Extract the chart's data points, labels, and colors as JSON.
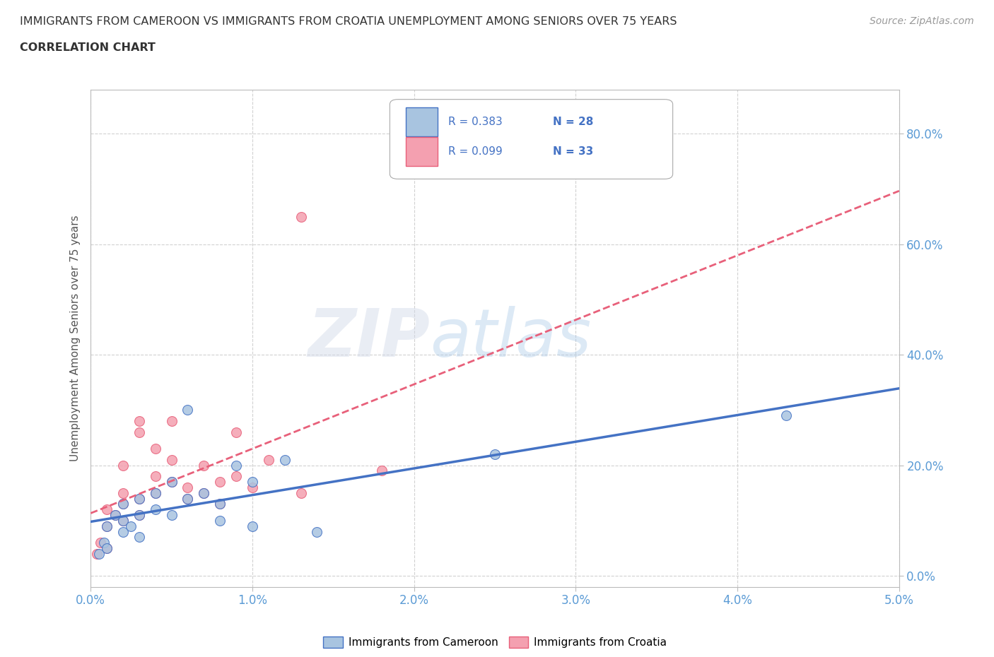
{
  "title_line1": "IMMIGRANTS FROM CAMEROON VS IMMIGRANTS FROM CROATIA UNEMPLOYMENT AMONG SENIORS OVER 75 YEARS",
  "title_line2": "CORRELATION CHART",
  "source": "Source: ZipAtlas.com",
  "ylabel_label": "Unemployment Among Seniors over 75 years",
  "xlim": [
    0.0,
    0.05
  ],
  "ylim": [
    -0.02,
    0.88
  ],
  "xticks": [
    0.0,
    0.01,
    0.02,
    0.03,
    0.04,
    0.05
  ],
  "yticks": [
    0.0,
    0.2,
    0.4,
    0.6,
    0.8
  ],
  "ytick_labels": [
    "0.0%",
    "20.0%",
    "40.0%",
    "60.0%",
    "80.0%"
  ],
  "xtick_labels": [
    "0.0%",
    "1.0%",
    "2.0%",
    "3.0%",
    "4.0%",
    "5.0%"
  ],
  "cameroon_color": "#a8c4e0",
  "croatia_color": "#f4a0b0",
  "trendline_cameroon_color": "#4472c4",
  "trendline_croatia_color": "#e8607a",
  "legend_R_cameroon": "R = 0.383",
  "legend_N_cameroon": "N = 28",
  "legend_R_croatia": "R = 0.099",
  "legend_N_croatia": "N = 33",
  "cameroon_x": [
    0.0005,
    0.0008,
    0.001,
    0.001,
    0.0015,
    0.002,
    0.002,
    0.002,
    0.0025,
    0.003,
    0.003,
    0.003,
    0.004,
    0.004,
    0.005,
    0.005,
    0.006,
    0.006,
    0.007,
    0.008,
    0.008,
    0.009,
    0.01,
    0.01,
    0.012,
    0.014,
    0.025,
    0.043
  ],
  "cameroon_y": [
    0.04,
    0.06,
    0.05,
    0.09,
    0.11,
    0.08,
    0.1,
    0.13,
    0.09,
    0.07,
    0.11,
    0.14,
    0.15,
    0.12,
    0.11,
    0.17,
    0.14,
    0.3,
    0.15,
    0.13,
    0.1,
    0.2,
    0.17,
    0.09,
    0.21,
    0.08,
    0.22,
    0.29
  ],
  "croatia_x": [
    0.0004,
    0.0006,
    0.001,
    0.001,
    0.001,
    0.0015,
    0.002,
    0.002,
    0.002,
    0.002,
    0.003,
    0.003,
    0.003,
    0.003,
    0.004,
    0.004,
    0.004,
    0.005,
    0.005,
    0.005,
    0.006,
    0.006,
    0.007,
    0.007,
    0.008,
    0.008,
    0.009,
    0.009,
    0.01,
    0.011,
    0.013,
    0.013,
    0.018
  ],
  "croatia_y": [
    0.04,
    0.06,
    0.05,
    0.09,
    0.12,
    0.11,
    0.1,
    0.13,
    0.15,
    0.2,
    0.11,
    0.14,
    0.26,
    0.28,
    0.15,
    0.18,
    0.23,
    0.17,
    0.21,
    0.28,
    0.14,
    0.16,
    0.15,
    0.2,
    0.13,
    0.17,
    0.18,
    0.26,
    0.16,
    0.21,
    0.15,
    0.65,
    0.19
  ],
  "watermark_zip": "ZIP",
  "watermark_atlas": "atlas",
  "background_color": "#ffffff",
  "grid_color": "#cccccc",
  "title_color": "#333333",
  "axis_label_color": "#555555",
  "tick_color": "#5b9bd5",
  "marker_size": 100
}
